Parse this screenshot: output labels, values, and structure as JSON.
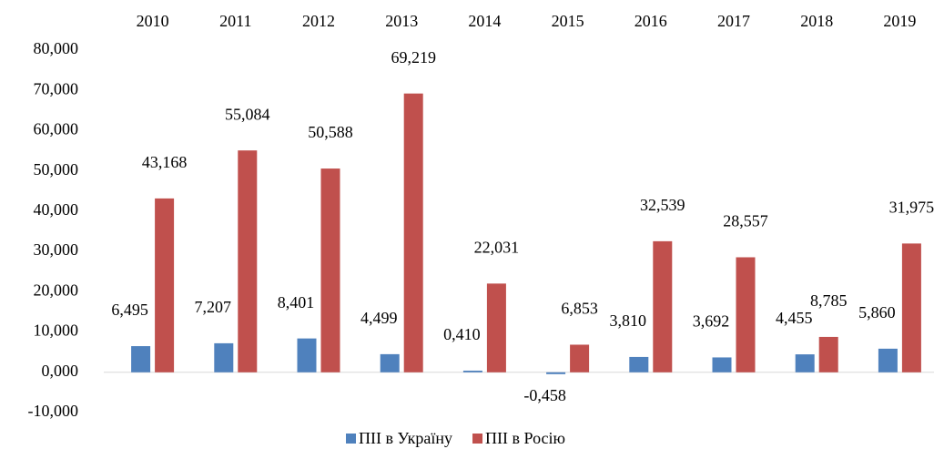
{
  "chart_data": {
    "type": "bar",
    "categories": [
      "2010",
      "2011",
      "2012",
      "2013",
      "2014",
      "2015",
      "2016",
      "2017",
      "2018",
      "2019"
    ],
    "series": [
      {
        "name": "ПІІ в Україну",
        "color": "#4f81bd",
        "values": [
          6.495,
          7.207,
          8.401,
          4.499,
          0.41,
          -0.458,
          3.81,
          3.692,
          4.455,
          5.86
        ],
        "value_labels": [
          "6,495",
          "7,207",
          "8,401",
          "4,499",
          "0,410",
          "-0,458",
          "3,810",
          "3,692",
          "4,455",
          "5,860"
        ]
      },
      {
        "name": "ПІІ в Росію",
        "color": "#c0504d",
        "values": [
          43.168,
          55.084,
          50.588,
          69.219,
          22.031,
          6.853,
          32.539,
          28.557,
          8.785,
          31.975
        ],
        "value_labels": [
          "43,168",
          "55,084",
          "50,588",
          "69,219",
          "22,031",
          "6,853",
          "32,539",
          "28,557",
          "8,785",
          "31,975"
        ]
      }
    ],
    "ylim": [
      -10,
      80
    ],
    "yticks": [
      {
        "value": -10,
        "label": "-10,000"
      },
      {
        "value": 0,
        "label": "0,000"
      },
      {
        "value": 10,
        "label": "10,000"
      },
      {
        "value": 20,
        "label": "20,000"
      },
      {
        "value": 30,
        "label": "30,000"
      },
      {
        "value": 40,
        "label": "40,000"
      },
      {
        "value": 50,
        "label": "50,000"
      },
      {
        "value": 60,
        "label": "60,000"
      },
      {
        "value": 70,
        "label": "70,000"
      },
      {
        "value": 80,
        "label": "80,000"
      }
    ],
    "grid": false,
    "legend": "bottom"
  }
}
